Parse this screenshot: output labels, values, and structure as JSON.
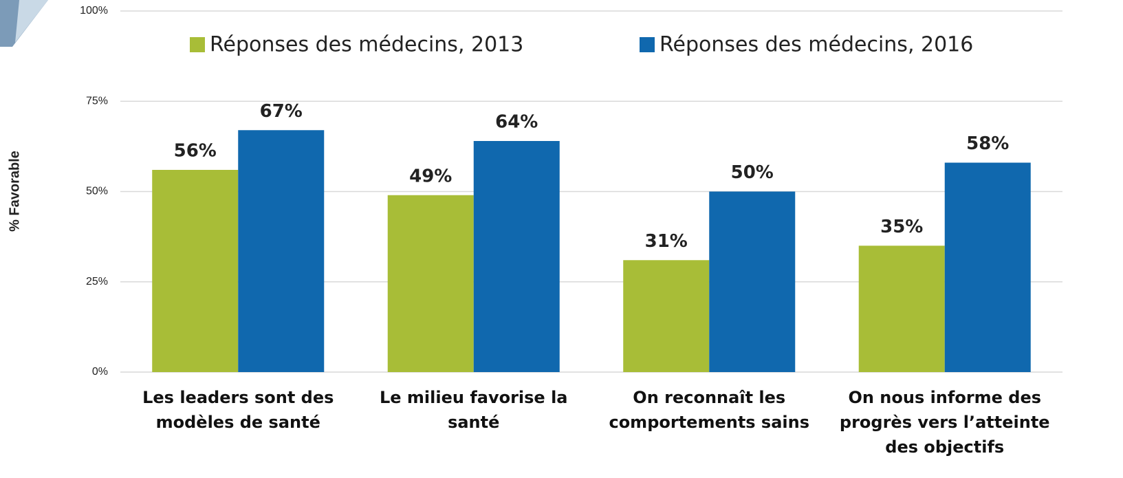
{
  "chart_data": {
    "type": "bar",
    "y_label": "% Favorable",
    "categories": [
      "Les leaders sont des modèles de santé",
      "Le milieu favorise la santé",
      "On reconnaît les comportements sains",
      "On nous informe des progrès vers l’atteinte des objectifs"
    ],
    "series": [
      {
        "name": "Réponses des médecins, 2013",
        "color": "#a8bd37",
        "values": [
          56,
          49,
          31,
          35
        ],
        "value_labels": [
          "56%",
          "49%",
          "31%",
          "35%"
        ]
      },
      {
        "name": "Réponses des médecins, 2016",
        "color": "#1068ae",
        "values": [
          67,
          64,
          50,
          58
        ],
        "value_labels": [
          "67%",
          "64%",
          "50%",
          "58%"
        ]
      }
    ],
    "ylim": [
      0,
      100
    ],
    "yticks": [
      {
        "value": 0,
        "label": "0%"
      },
      {
        "value": 25,
        "label": "25%"
      },
      {
        "value": 50,
        "label": "50%"
      },
      {
        "value": 75,
        "label": "75%"
      },
      {
        "value": 100,
        "label": "100%"
      }
    ],
    "grid": true,
    "legend": "top"
  }
}
